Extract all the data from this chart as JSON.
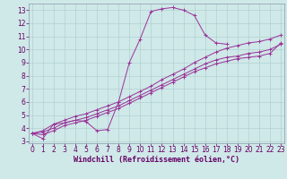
{
  "xlabel": "Windchill (Refroidissement éolien,°C)",
  "bg_color": "#cfe8e8",
  "line_color": "#993399",
  "grid_color": "#aacccc",
  "x_main": [
    0,
    1,
    2,
    3,
    4,
    5,
    6,
    7,
    8,
    9,
    10,
    11,
    12,
    13,
    14,
    15,
    16,
    17,
    18
  ],
  "y_main": [
    3.6,
    3.2,
    4.3,
    4.4,
    4.6,
    4.5,
    3.8,
    3.9,
    6.0,
    9.0,
    10.8,
    12.9,
    13.1,
    13.2,
    13.0,
    12.6,
    11.1,
    10.5,
    10.4
  ],
  "x_all": [
    0,
    1,
    2,
    3,
    4,
    5,
    6,
    7,
    8,
    9,
    10,
    11,
    12,
    13,
    14,
    15,
    16,
    17,
    18,
    19,
    20,
    21,
    22,
    23
  ],
  "y_l1": [
    3.6,
    3.8,
    4.3,
    4.6,
    4.9,
    5.1,
    5.4,
    5.7,
    6.0,
    6.4,
    6.8,
    7.2,
    7.7,
    8.1,
    8.5,
    9.0,
    9.4,
    9.8,
    10.1,
    10.3,
    10.5,
    10.6,
    10.8,
    11.1
  ],
  "y_l2": [
    3.6,
    3.7,
    4.0,
    4.4,
    4.6,
    4.8,
    5.1,
    5.4,
    5.7,
    6.1,
    6.5,
    6.9,
    7.3,
    7.7,
    8.1,
    8.5,
    8.9,
    9.2,
    9.4,
    9.5,
    9.7,
    9.8,
    10.0,
    10.4
  ],
  "y_l3": [
    3.6,
    3.5,
    3.8,
    4.2,
    4.4,
    4.6,
    4.9,
    5.2,
    5.5,
    5.9,
    6.3,
    6.7,
    7.1,
    7.5,
    7.9,
    8.3,
    8.6,
    8.9,
    9.1,
    9.3,
    9.4,
    9.5,
    9.7,
    10.5
  ],
  "xlim": [
    -0.3,
    23.3
  ],
  "ylim": [
    2.85,
    13.5
  ],
  "xticks": [
    0,
    1,
    2,
    3,
    4,
    5,
    6,
    7,
    8,
    9,
    10,
    11,
    12,
    13,
    14,
    15,
    16,
    17,
    18,
    19,
    20,
    21,
    22,
    23
  ],
  "yticks": [
    3,
    4,
    5,
    6,
    7,
    8,
    9,
    10,
    11,
    12,
    13
  ],
  "tick_fontsize": 5.5,
  "xlabel_fontsize": 6.0
}
